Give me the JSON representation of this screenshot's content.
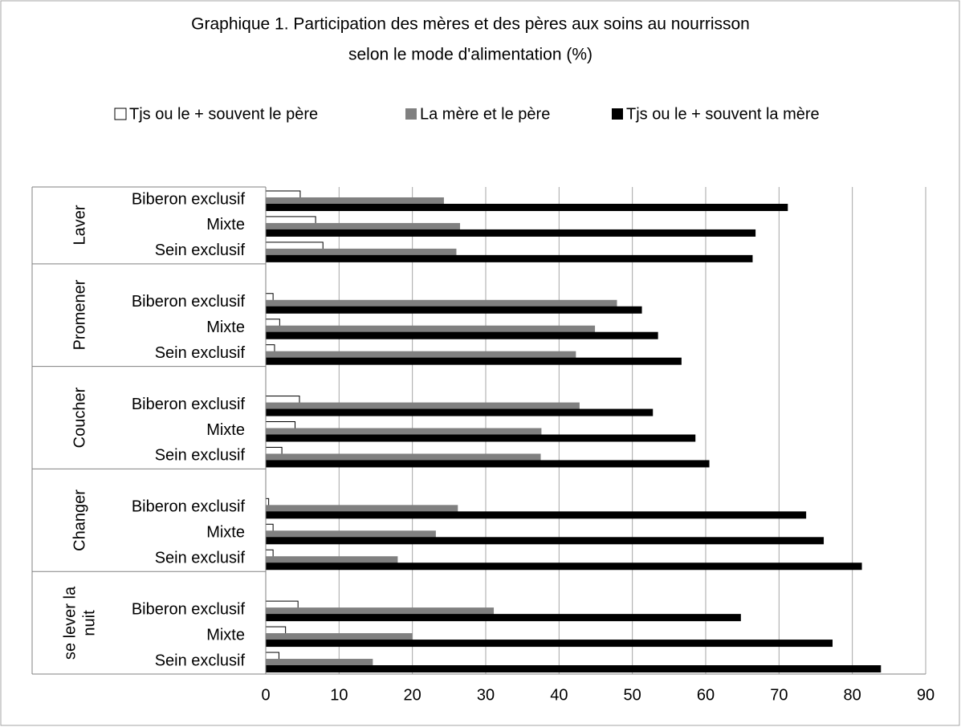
{
  "chart_data": {
    "type": "bar",
    "orientation": "horizontal",
    "title": [
      "Graphique 1. Participation des mères et des pères aux soins au nourrisson",
      "selon le mode d'alimentation (%)"
    ],
    "category_groups": [
      "Laver",
      "Promener",
      "Coucher",
      "Changer",
      "se lever la nuit"
    ],
    "categories": [
      "Biberon exclusif",
      "Mixte",
      "Sein exclusif",
      null,
      "Biberon exclusif",
      "Mixte",
      "Sein exclusif",
      null,
      "Biberon exclusif",
      "Mixte",
      "Sein exclusif",
      null,
      "Biberon exclusif",
      "Mixte",
      "Sein exclusif",
      null,
      "Biberon exclusif",
      "Mixte",
      "Sein exclusif"
    ],
    "series": [
      {
        "name": "Tjs ou le + souvent le père",
        "color": "#ffffff",
        "values": [
          4.7,
          6.8,
          7.8,
          null,
          1,
          1.9,
          1.2,
          null,
          4.6,
          4,
          2.2,
          null,
          0.4,
          1,
          1,
          null,
          4.4,
          2.7,
          1.8
        ]
      },
      {
        "name": "La mère et le père",
        "color": "#808080",
        "values": [
          24.3,
          26.5,
          26,
          null,
          47.9,
          44.9,
          42.3,
          null,
          42.8,
          37.6,
          37.5,
          null,
          26.2,
          23.2,
          18,
          null,
          31.1,
          20,
          14.6
        ]
      },
      {
        "name": "Tjs ou le + souvent la mère",
        "color": "#000000",
        "values": [
          71.2,
          66.8,
          66.4,
          null,
          51.3,
          53.5,
          56.7,
          null,
          52.8,
          58.6,
          60.5,
          null,
          73.7,
          76.1,
          81.3,
          null,
          64.8,
          77.3,
          83.9
        ]
      }
    ],
    "xlim": [
      0,
      90
    ],
    "xticks": [
      0,
      10,
      20,
      30,
      40,
      50,
      60,
      70,
      80,
      90
    ],
    "grid": true,
    "legend": "top"
  }
}
